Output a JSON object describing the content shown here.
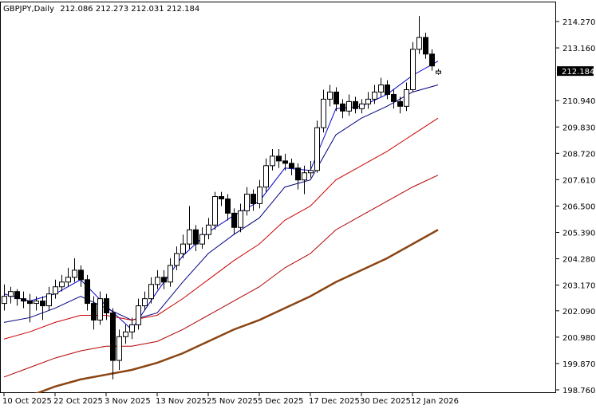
{
  "chart_data": {
    "type": "candlestick",
    "title": "GBPJPY,Daily",
    "ylim": [
      198.626,
      215.109
    ],
    "yticks": [
      {
        "value": 214.27,
        "label": "214.270"
      },
      {
        "value": 213.16,
        "label": "213.160"
      },
      {
        "value": 210.94,
        "label": "210.940"
      },
      {
        "value": 209.83,
        "label": "209.830"
      },
      {
        "value": 208.72,
        "label": "208.720"
      },
      {
        "value": 207.61,
        "label": "207.610"
      },
      {
        "value": 206.5,
        "label": "206.500"
      },
      {
        "value": 205.39,
        "label": "205.390"
      },
      {
        "value": 204.28,
        "label": "204.280"
      },
      {
        "value": 203.17,
        "label": "203.170"
      },
      {
        "value": 202.09,
        "label": "202.090"
      },
      {
        "value": 200.98,
        "label": "200.980"
      },
      {
        "value": 199.87,
        "label": "199.870"
      },
      {
        "value": 198.76,
        "label": "198.760"
      }
    ],
    "categories": [
      "10 Oct 2025",
      null,
      null,
      null,
      null,
      null,
      null,
      null,
      "22 Oct 2025",
      null,
      null,
      null,
      null,
      null,
      null,
      null,
      "3 Nov 2025",
      null,
      null,
      null,
      null,
      null,
      null,
      null,
      "13 Nov 2025",
      null,
      null,
      null,
      null,
      null,
      null,
      null,
      "25 Nov 2025",
      null,
      null,
      null,
      null,
      null,
      null,
      null,
      "5 Dec 2025",
      null,
      null,
      null,
      null,
      null,
      null,
      null,
      "17 Dec 2025",
      null,
      null,
      null,
      null,
      null,
      null,
      null,
      "30 Dec 2025",
      null,
      null,
      null,
      null,
      null,
      null,
      null,
      "12 Jan 2026",
      null,
      null,
      null,
      null
    ],
    "ohlc": [
      [
        202.4,
        203.2,
        202.1,
        202.7
      ],
      [
        202.7,
        203.1,
        202.4,
        202.9
      ],
      [
        202.9,
        203.0,
        202.3,
        202.6
      ],
      [
        202.6,
        202.9,
        202.2,
        202.5
      ],
      [
        202.5,
        202.8,
        201.6,
        202.4
      ],
      [
        202.4,
        202.7,
        202.1,
        202.5
      ],
      [
        202.5,
        202.7,
        201.7,
        202.3
      ],
      [
        202.3,
        203.1,
        202.1,
        202.8
      ],
      [
        202.8,
        203.4,
        202.6,
        203.1
      ],
      [
        203.1,
        203.6,
        202.9,
        203.3
      ],
      [
        203.3,
        203.9,
        203.1,
        203.5
      ],
      [
        203.5,
        204.3,
        203.3,
        203.8
      ],
      [
        203.8,
        204.0,
        203.1,
        203.4
      ],
      [
        203.4,
        203.6,
        202.1,
        202.4
      ],
      [
        202.4,
        202.7,
        201.3,
        201.7
      ],
      [
        201.7,
        202.9,
        201.5,
        202.6
      ],
      [
        202.6,
        202.8,
        201.7,
        202.0
      ],
      [
        202.0,
        202.2,
        199.2,
        200.0
      ],
      [
        200.0,
        201.3,
        199.6,
        201.0
      ],
      [
        201.0,
        201.5,
        200.7,
        201.2
      ],
      [
        201.2,
        201.8,
        200.9,
        201.5
      ],
      [
        201.5,
        202.6,
        201.3,
        202.3
      ],
      [
        202.3,
        202.9,
        202.1,
        202.6
      ],
      [
        202.6,
        203.5,
        202.4,
        203.2
      ],
      [
        203.2,
        203.8,
        203.0,
        203.5
      ],
      [
        203.5,
        203.8,
        203.0,
        203.3
      ],
      [
        203.3,
        204.3,
        203.1,
        204.0
      ],
      [
        204.0,
        204.8,
        203.8,
        204.5
      ],
      [
        204.5,
        205.3,
        204.3,
        204.9
      ],
      [
        204.9,
        206.5,
        204.7,
        205.5
      ],
      [
        205.5,
        205.7,
        204.6,
        204.9
      ],
      [
        204.9,
        205.6,
        204.7,
        205.3
      ],
      [
        205.3,
        206.0,
        205.1,
        205.7
      ],
      [
        205.7,
        207.1,
        205.5,
        206.9
      ],
      [
        206.9,
        207.1,
        206.5,
        206.8
      ],
      [
        206.8,
        207.0,
        205.9,
        206.2
      ],
      [
        206.2,
        206.4,
        205.3,
        205.6
      ],
      [
        205.6,
        206.6,
        205.4,
        206.3
      ],
      [
        206.3,
        207.3,
        206.1,
        207.0
      ],
      [
        207.0,
        207.2,
        206.3,
        206.6
      ],
      [
        206.6,
        207.6,
        206.4,
        207.3
      ],
      [
        207.3,
        208.5,
        207.1,
        208.2
      ],
      [
        208.2,
        208.9,
        208.0,
        208.6
      ],
      [
        208.6,
        208.9,
        208.1,
        208.4
      ],
      [
        208.4,
        208.7,
        208.0,
        208.3
      ],
      [
        208.3,
        208.5,
        207.8,
        208.1
      ],
      [
        208.1,
        208.3,
        207.2,
        207.6
      ],
      [
        207.6,
        208.2,
        207.0,
        207.9
      ],
      [
        207.9,
        208.4,
        207.7,
        208.0
      ],
      [
        208.0,
        210.1,
        207.9,
        209.8
      ],
      [
        209.8,
        211.4,
        209.6,
        211.0
      ],
      [
        211.0,
        211.6,
        210.7,
        211.3
      ],
      [
        211.3,
        211.5,
        210.5,
        210.8
      ],
      [
        210.8,
        211.0,
        210.2,
        210.5
      ],
      [
        210.5,
        211.2,
        210.3,
        210.9
      ],
      [
        210.9,
        211.1,
        210.4,
        210.6
      ],
      [
        210.6,
        211.0,
        210.4,
        210.8
      ],
      [
        210.8,
        211.3,
        210.6,
        211.0
      ],
      [
        211.0,
        211.6,
        210.8,
        211.3
      ],
      [
        211.3,
        211.9,
        211.1,
        211.6
      ],
      [
        211.6,
        211.8,
        211.0,
        211.2
      ],
      [
        211.2,
        211.4,
        210.6,
        210.9
      ],
      [
        210.9,
        211.1,
        210.4,
        210.7
      ],
      [
        210.7,
        211.7,
        210.5,
        211.4
      ],
      [
        211.4,
        213.4,
        211.3,
        213.1
      ],
      [
        213.1,
        214.5,
        212.9,
        213.6
      ],
      [
        213.6,
        213.8,
        212.7,
        212.9
      ],
      [
        212.9,
        213.1,
        212.2,
        212.4
      ],
      [
        212.086,
        212.273,
        212.031,
        212.184
      ]
    ],
    "lines": [
      {
        "color": "#0000cc",
        "x": [
          0,
          4,
          8,
          12,
          16,
          20,
          24,
          28,
          32,
          36,
          40,
          44,
          48,
          52,
          56,
          60,
          64,
          68
        ],
        "values": [
          202.8,
          202.5,
          202.8,
          203.4,
          202.3,
          201.3,
          202.9,
          204.4,
          205.4,
          206.1,
          206.7,
          208.1,
          208.0,
          210.6,
          210.7,
          211.2,
          212.0,
          212.6
        ]
      },
      {
        "color": "#000080",
        "x": [
          0,
          4,
          8,
          12,
          16,
          20,
          24,
          28,
          32,
          36,
          40,
          44,
          48,
          52,
          56,
          60,
          64,
          68
        ],
        "values": [
          201.6,
          201.8,
          202.2,
          202.7,
          202.2,
          201.7,
          202.0,
          203.3,
          204.5,
          205.3,
          206.0,
          207.3,
          207.6,
          209.5,
          210.2,
          210.7,
          211.3,
          211.6
        ]
      },
      {
        "color": "#cc0000",
        "x": [
          0,
          4,
          8,
          12,
          16,
          20,
          24,
          28,
          32,
          36,
          40,
          44,
          48,
          52,
          56,
          60,
          64,
          68
        ],
        "values": [
          200.9,
          201.2,
          201.6,
          201.9,
          201.9,
          201.7,
          201.9,
          202.6,
          203.4,
          204.2,
          204.9,
          205.9,
          206.5,
          207.6,
          208.2,
          208.8,
          209.5,
          210.2
        ]
      },
      {
        "color": "#b00000",
        "x": [
          0,
          4,
          8,
          12,
          16,
          20,
          24,
          28,
          32,
          36,
          40,
          44,
          48,
          52,
          56,
          60,
          64,
          68
        ],
        "values": [
          199.3,
          199.7,
          200.1,
          200.4,
          200.6,
          200.6,
          200.8,
          201.3,
          201.9,
          202.5,
          203.1,
          203.9,
          204.5,
          205.5,
          206.1,
          206.7,
          207.3,
          207.8
        ]
      },
      {
        "color": "#8b4513",
        "x": [
          0,
          4,
          8,
          12,
          16,
          20,
          24,
          28,
          32,
          36,
          40,
          44,
          48,
          52,
          56,
          60,
          64,
          68
        ],
        "values": [
          198.3,
          198.5,
          198.9,
          199.2,
          199.4,
          199.6,
          199.9,
          200.3,
          200.8,
          201.3,
          201.7,
          202.2,
          202.7,
          203.3,
          203.8,
          204.3,
          204.9,
          205.5
        ]
      }
    ]
  }
}
